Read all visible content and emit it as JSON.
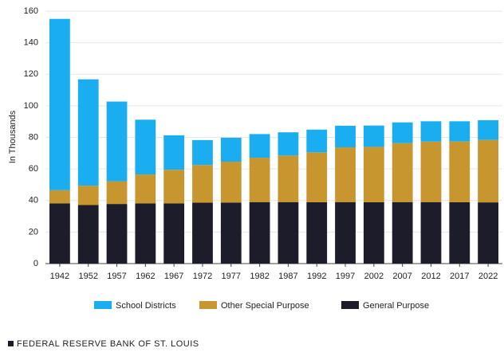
{
  "chart_data": {
    "type": "stacked_bar",
    "ylabel": "In Thousands",
    "categories": [
      "1942",
      "1952",
      "1957",
      "1962",
      "1967",
      "1972",
      "1977",
      "1982",
      "1987",
      "1992",
      "1997",
      "2002",
      "2007",
      "2012",
      "2017",
      "2022"
    ],
    "series": [
      {
        "name": "School Districts",
        "color": "#1aaef0",
        "values": [
          108.6,
          67.4,
          50.5,
          34.7,
          21.8,
          15.8,
          15.2,
          15.0,
          14.7,
          14.4,
          13.7,
          13.5,
          13.1,
          12.9,
          12.8,
          12.5
        ]
      },
      {
        "name": "Other Special Purpose",
        "color": "#c8962e",
        "values": [
          8.3,
          12.3,
          14.4,
          18.3,
          21.3,
          23.9,
          25.9,
          28.1,
          29.5,
          31.6,
          34.7,
          35.1,
          37.4,
          38.3,
          38.5,
          39.6
        ]
      },
      {
        "name": "General Purpose",
        "color": "#1c1c2a",
        "values": [
          38.2,
          37.1,
          37.8,
          38.2,
          38.2,
          38.6,
          38.7,
          39.0,
          39.0,
          38.9,
          39.0,
          38.9,
          39.0,
          39.0,
          38.9,
          38.8
        ]
      }
    ],
    "ylim": [
      0,
      160
    ],
    "yticks": [
      0,
      20,
      40,
      60,
      80,
      100,
      120,
      140,
      160
    ],
    "grid": true,
    "source": "FEDERAL RESERVE BANK OF ST. LOUIS"
  }
}
